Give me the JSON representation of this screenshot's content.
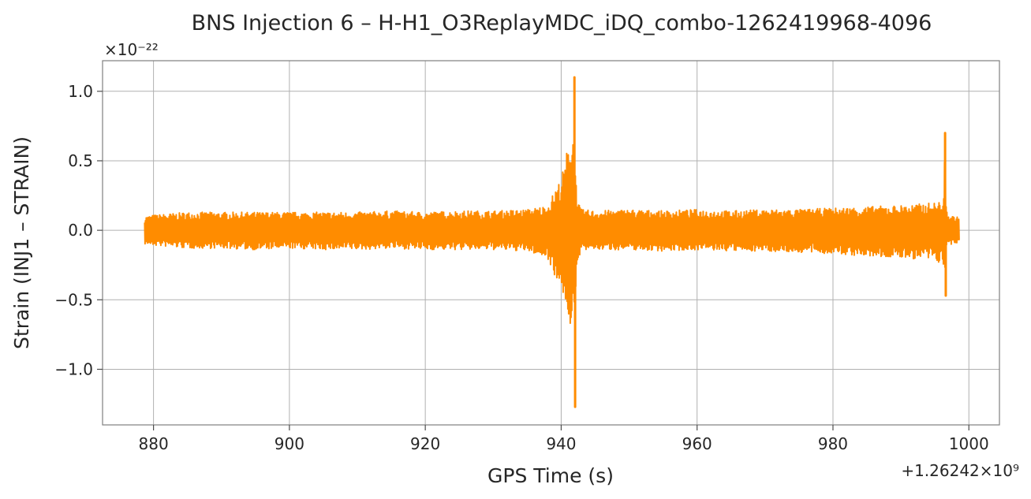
{
  "chart_data": {
    "type": "line",
    "title": "BNS Injection 6 – H-H1_O3ReplayMDC_iDQ_combo-1262419968-4096",
    "xlabel": "GPS Time (s)",
    "ylabel": "Strain (INJ1 – STRAIN)",
    "x_offset_label": "+1.26242×10⁹",
    "y_scale_label": "×10⁻²²",
    "xlim": [
      872.5,
      1004.5
    ],
    "ylim": [
      -1.4,
      1.22
    ],
    "x_ticks": [
      880,
      900,
      920,
      940,
      960,
      980,
      1000
    ],
    "x_tick_labels": [
      "880",
      "900",
      "920",
      "940",
      "960",
      "980",
      "1000"
    ],
    "y_ticks": [
      -1.0,
      -0.5,
      0.0,
      0.5,
      1.0
    ],
    "y_tick_labels": [
      "−1.0",
      "−0.5",
      "0.0",
      "0.5",
      "1.0"
    ],
    "grid": true,
    "color": "#ff8c00",
    "series": [
      {
        "x": [
          878.7,
          880,
          885,
          890,
          895,
          900,
          905,
          910,
          915,
          920,
          925,
          930,
          935,
          938,
          939,
          940,
          940.5,
          941,
          941.5,
          941.9,
          942.0,
          942.1,
          942.5,
          943,
          945,
          950,
          955,
          960,
          965,
          970,
          975,
          980,
          985,
          990,
          993,
          995,
          996.3,
          996.5,
          996.7,
          997,
          998,
          998.6
        ],
        "upper": [
          0.1,
          0.11,
          0.13,
          0.13,
          0.13,
          0.13,
          0.13,
          0.13,
          0.14,
          0.13,
          0.14,
          0.14,
          0.15,
          0.18,
          0.28,
          0.38,
          0.48,
          0.62,
          0.7,
          0.74,
          1.1,
          0.4,
          0.2,
          0.15,
          0.14,
          0.15,
          0.14,
          0.15,
          0.14,
          0.15,
          0.15,
          0.16,
          0.17,
          0.18,
          0.19,
          0.2,
          0.22,
          0.7,
          0.15,
          0.11,
          0.1,
          0.09
        ],
        "lower": [
          -0.1,
          -0.11,
          -0.13,
          -0.13,
          -0.14,
          -0.13,
          -0.14,
          -0.14,
          -0.13,
          -0.14,
          -0.14,
          -0.14,
          -0.15,
          -0.2,
          -0.32,
          -0.42,
          -0.5,
          -0.62,
          -0.72,
          -0.8,
          -1.27,
          -0.5,
          -0.2,
          -0.15,
          -0.14,
          -0.14,
          -0.15,
          -0.14,
          -0.15,
          -0.15,
          -0.16,
          -0.17,
          -0.19,
          -0.2,
          -0.21,
          -0.22,
          -0.25,
          -0.47,
          -0.15,
          -0.11,
          -0.1,
          -0.09
        ]
      }
    ]
  }
}
